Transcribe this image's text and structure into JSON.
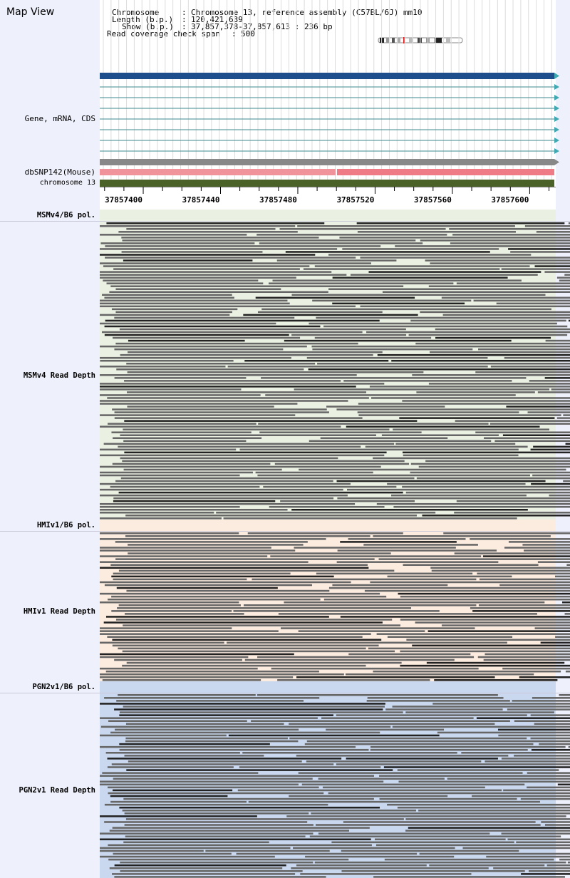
{
  "title": "Map View",
  "info": {
    "chromosome_label": "Chromosome",
    "chromosome_value": "Chromosome 13, reference assembly (C57BL/6J) mm10",
    "length_label": "Length (b.p.)",
    "length_value": "120,421,639",
    "show_label": "Show (b.p.)",
    "show_value": "37,857,378-37,857,613 : 236 bp",
    "span_label": "Read coverage check span",
    "span_value": "500"
  },
  "tracks": {
    "gene": "Gene, mRNA, CDS",
    "dbsnp": "dbSNP142(Mouse)",
    "chromosome": "chromosome 13",
    "msm_pol": "MSMv4/B6 pol.",
    "msm_depth": "MSMv4 Read Depth",
    "hmi_pol": "HMIv1/B6 pol.",
    "hmi_depth": "HMIv1 Read Depth",
    "pgn_pol": "PGN2v1/B6 pol.",
    "pgn_depth": "PGN2v1 Read Depth"
  },
  "ruler": {
    "range": [
      37857378,
      37857613
    ],
    "ticks": [
      "37857400",
      "37857440",
      "37857480",
      "37857520",
      "37857560",
      "37857600"
    ]
  },
  "colors": {
    "gene_main": "#1f4e8c",
    "gene_thin": "#3d8a8f",
    "gene_arrow": "#3fa8b0",
    "dbsnp_gray": "#888888",
    "dbsnp_pink": "#ee7b86",
    "chromosome": "#4a6128",
    "msm_bg": "#eaf0e2",
    "hmi_bg": "#fcebdf",
    "pgn_bg": "#c9d8ee",
    "read": "#666666",
    "read_dark": "#222222"
  }
}
